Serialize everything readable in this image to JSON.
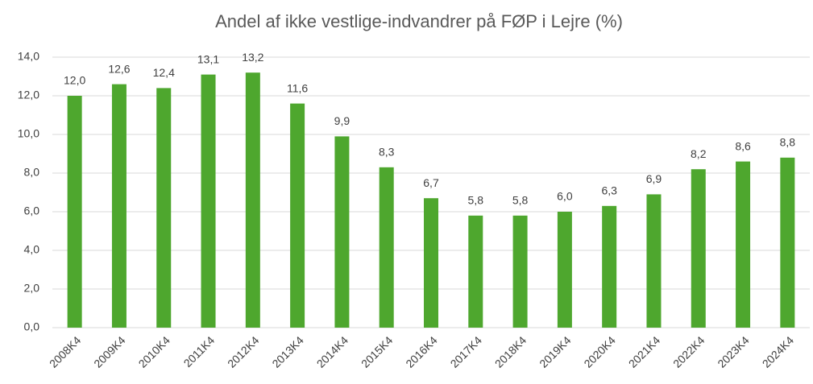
{
  "chart_data": {
    "type": "bar",
    "title": "Andel af ikke vestlige-indvandrer på FØP i Lejre (%)",
    "categories": [
      "2008K4",
      "2009K4",
      "2010K4",
      "2011K4",
      "2012K4",
      "2013K4",
      "2014K4",
      "2015K4",
      "2016K4",
      "2017K4",
      "2018K4",
      "2019K4",
      "2020K4",
      "2021K4",
      "2022K4",
      "2023K4",
      "2024K4"
    ],
    "values": [
      12.0,
      12.6,
      12.4,
      13.1,
      13.2,
      11.6,
      9.9,
      8.3,
      6.7,
      5.8,
      5.8,
      6.0,
      6.3,
      6.9,
      8.2,
      8.6,
      8.8
    ],
    "value_labels": [
      "12,0",
      "12,6",
      "12,4",
      "13,1",
      "13,2",
      "11,6",
      "9,9",
      "8,3",
      "6,7",
      "5,8",
      "5,8",
      "6,0",
      "6,3",
      "6,9",
      "8,2",
      "8,6",
      "8,8"
    ],
    "color": "#4ea72e",
    "ylim": [
      0,
      14
    ],
    "yticks": [
      {
        "value": 0,
        "label": "0,0"
      },
      {
        "value": 2,
        "label": "2,0"
      },
      {
        "value": 4,
        "label": "4,0"
      },
      {
        "value": 6,
        "label": "6,0"
      },
      {
        "value": 8,
        "label": "8,0"
      },
      {
        "value": 10,
        "label": "10,0"
      },
      {
        "value": 12,
        "label": "12,0"
      },
      {
        "value": 14,
        "label": "14,0"
      }
    ],
    "grid": true
  }
}
